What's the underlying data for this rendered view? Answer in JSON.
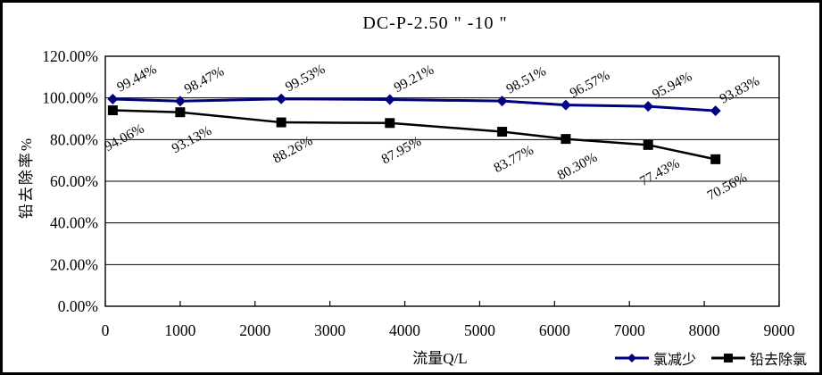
{
  "chart_data": {
    "type": "line",
    "title": "DC-P-2.50 \" -10 \"",
    "xlabel": "流量Q/L",
    "ylabel": "铅去除率%",
    "xlim": [
      0,
      9000
    ],
    "ylim_percent": [
      0,
      120
    ],
    "grid": "horizontal",
    "legend_position": "bottom-right",
    "x_ticks": [
      0,
      1000,
      2000,
      3000,
      4000,
      5000,
      6000,
      7000,
      8000,
      9000
    ],
    "y_ticks": [
      {
        "value": 120,
        "label": "120.00%"
      },
      {
        "value": 100,
        "label": "100.00%"
      },
      {
        "value": 80,
        "label": "80.00%"
      },
      {
        "value": 60,
        "label": "60.00%"
      },
      {
        "value": 40,
        "label": "40.00%"
      },
      {
        "value": 20,
        "label": "20.00%"
      },
      {
        "value": 0,
        "label": "0.00%"
      }
    ],
    "x": [
      100,
      1000,
      2350,
      3800,
      5300,
      6150,
      7250,
      8150
    ],
    "series": [
      {
        "name": "氯减少",
        "color": "#000080",
        "marker": "diamond",
        "values": [
          99.44,
          98.47,
          99.53,
          99.21,
          98.51,
          96.57,
          95.94,
          93.83
        ],
        "labels": [
          "99.44%",
          "98.47%",
          "99.53%",
          "99.21%",
          "98.51%",
          "96.57%",
          "95.94%",
          "93.83%"
        ]
      },
      {
        "name": "铅去除氯",
        "color": "#000000",
        "marker": "square",
        "values": [
          94.06,
          93.13,
          88.26,
          87.95,
          83.77,
          80.3,
          77.43,
          70.56
        ],
        "labels": [
          "94.06%",
          "93.13%",
          "88.26%",
          "87.95%",
          "83.77%",
          "80.30%",
          "77.43%",
          "70.56%"
        ]
      }
    ],
    "axis_color": "#000000",
    "background_color": "#ffffff"
  }
}
